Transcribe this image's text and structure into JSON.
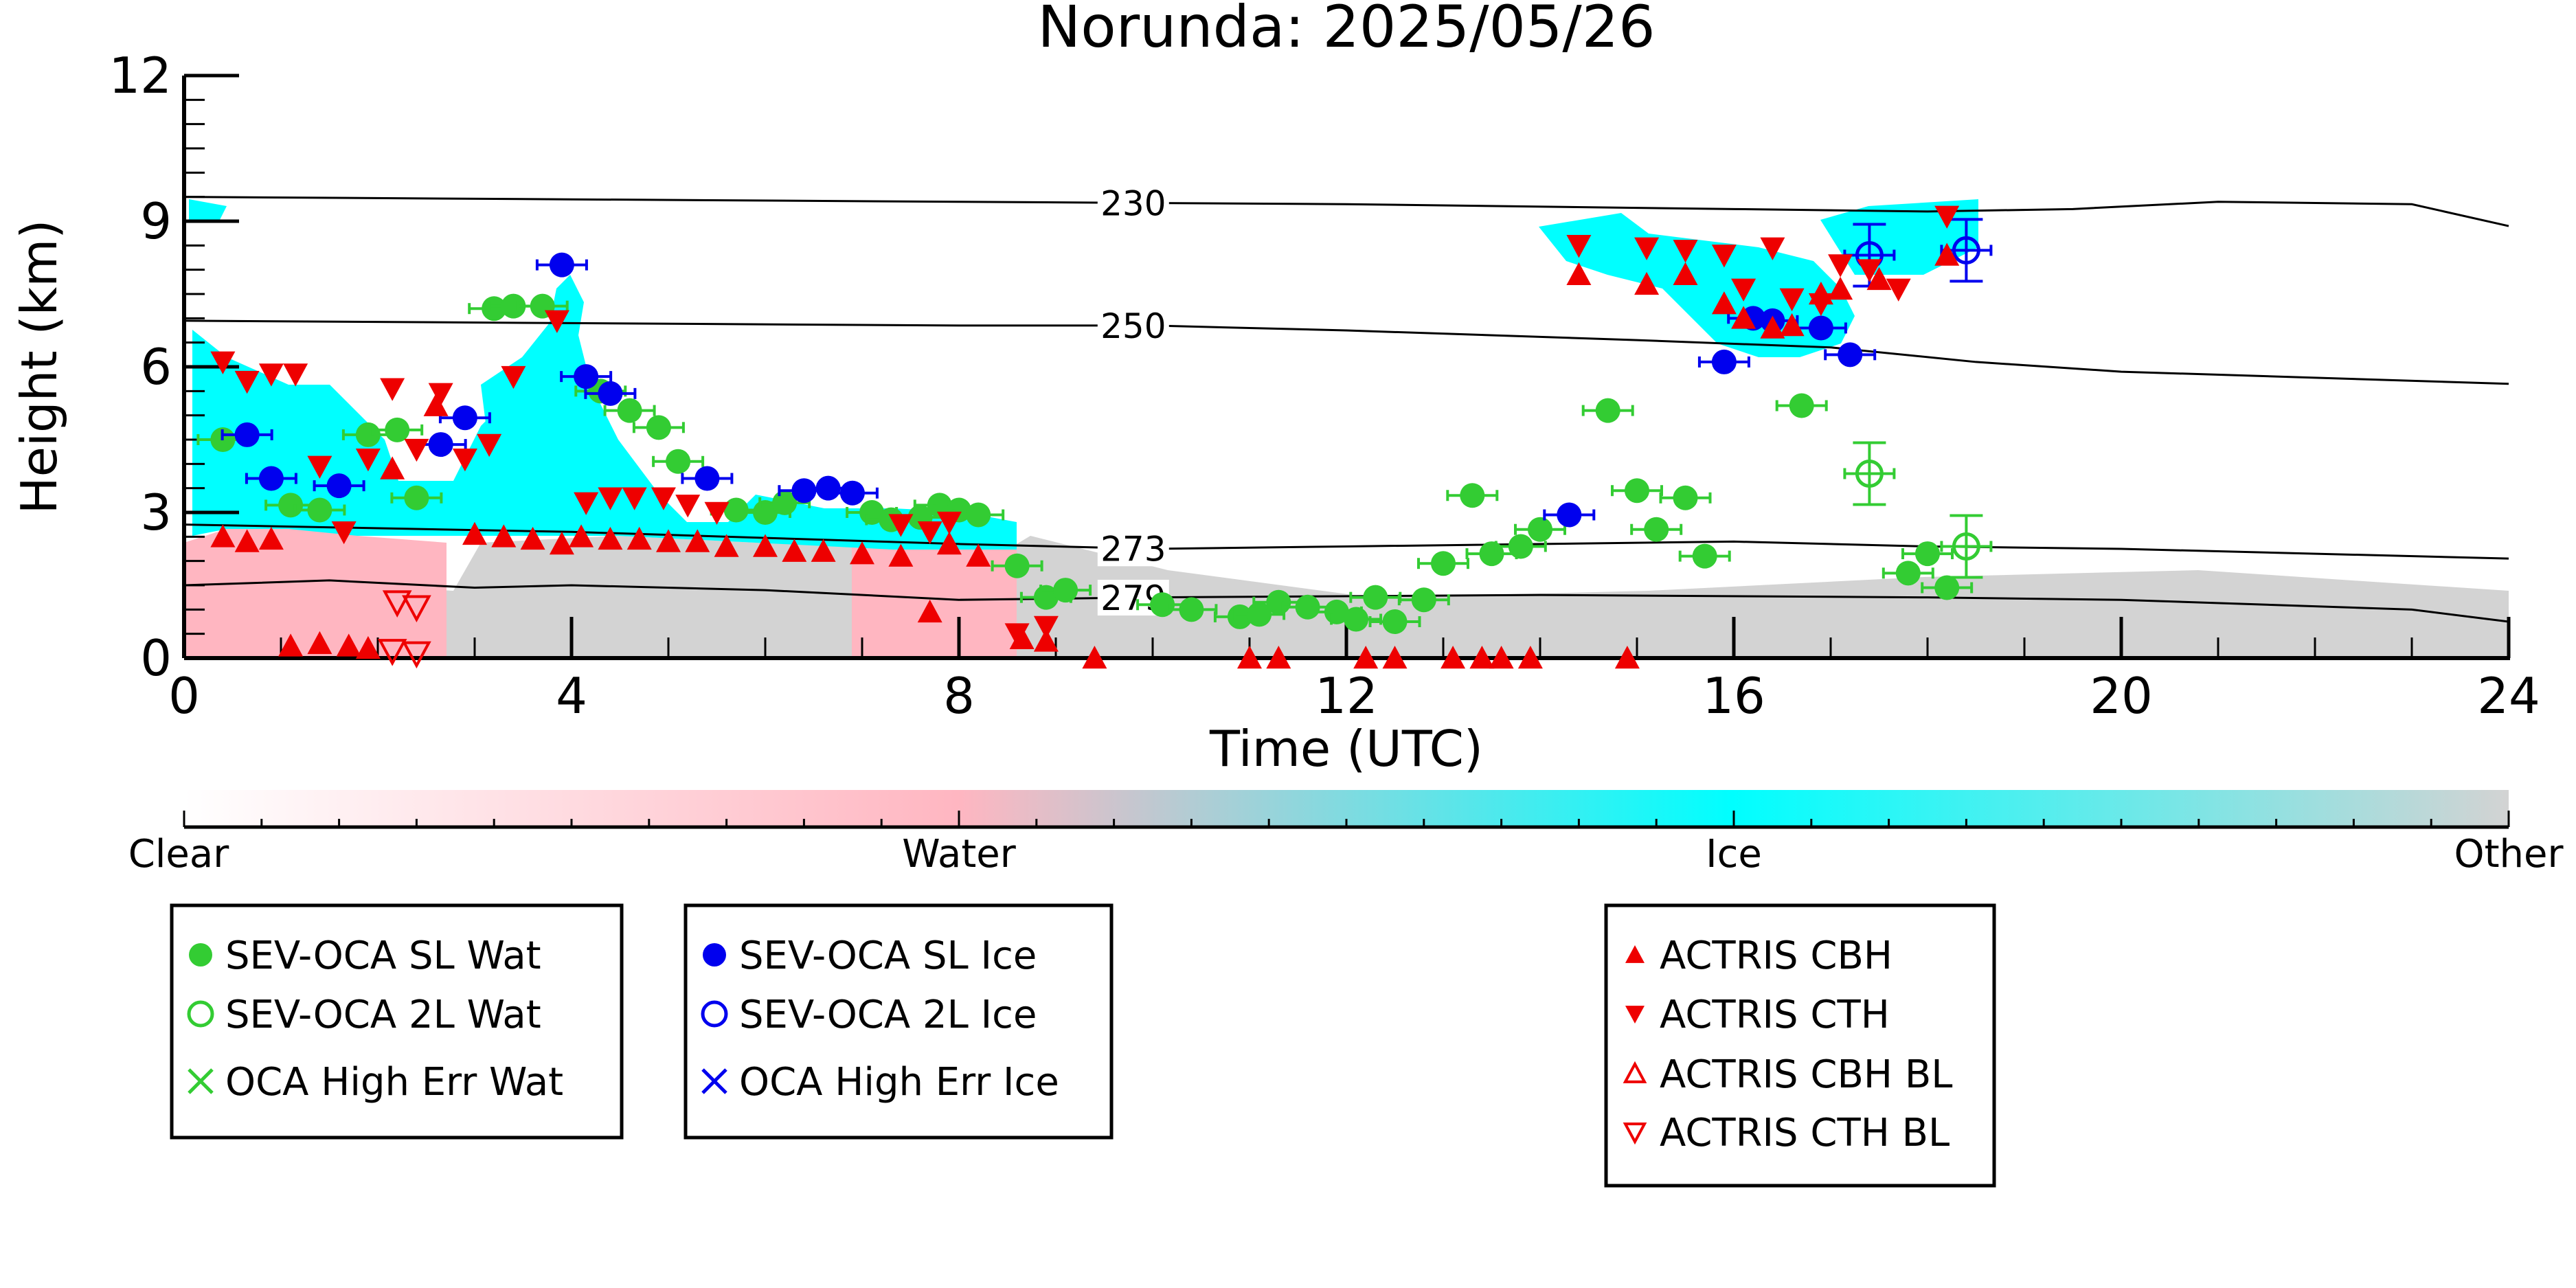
{
  "chart_data": {
    "type": "scatter",
    "title": "Norunda: 2025/05/26",
    "xlabel": "Time (UTC)",
    "ylabel": "Height (km)",
    "xlim": [
      0,
      24
    ],
    "ylim": [
      0,
      12
    ],
    "xticks": [
      0,
      4,
      8,
      12,
      16,
      20,
      24
    ],
    "yticks": [
      0,
      3,
      6,
      9,
      12
    ],
    "grid": false,
    "isotherms": [
      {
        "label": "230",
        "label_x": 9.8,
        "points": [
          [
            0,
            9.5
          ],
          [
            4,
            9.45
          ],
          [
            8,
            9.4
          ],
          [
            12,
            9.35
          ],
          [
            16,
            9.25
          ],
          [
            18,
            9.2
          ],
          [
            19.5,
            9.25
          ],
          [
            21,
            9.4
          ],
          [
            23,
            9.35
          ],
          [
            24,
            8.9
          ]
        ]
      },
      {
        "label": "250",
        "label_x": 9.8,
        "points": [
          [
            0,
            6.95
          ],
          [
            4,
            6.9
          ],
          [
            8,
            6.85
          ],
          [
            10,
            6.85
          ],
          [
            12,
            6.75
          ],
          [
            15,
            6.55
          ],
          [
            17,
            6.4
          ],
          [
            18.5,
            6.1
          ],
          [
            20,
            5.9
          ],
          [
            24,
            5.65
          ]
        ]
      },
      {
        "label": "273",
        "label_x": 9.8,
        "points": [
          [
            0,
            2.75
          ],
          [
            4,
            2.6
          ],
          [
            8,
            2.35
          ],
          [
            10,
            2.25
          ],
          [
            12,
            2.3
          ],
          [
            16,
            2.4
          ],
          [
            18,
            2.3
          ],
          [
            20,
            2.25
          ],
          [
            24,
            2.05
          ]
        ]
      },
      {
        "label": "279",
        "label_x": 9.8,
        "points": [
          [
            0,
            1.5
          ],
          [
            1.5,
            1.6
          ],
          [
            3,
            1.45
          ],
          [
            4,
            1.5
          ],
          [
            6,
            1.4
          ],
          [
            8,
            1.2
          ],
          [
            10,
            1.25
          ],
          [
            14,
            1.3
          ],
          [
            18,
            1.25
          ],
          [
            20,
            1.2
          ],
          [
            23,
            1.0
          ],
          [
            24,
            0.75
          ]
        ]
      }
    ],
    "colorbar": {
      "labels": [
        "Clear",
        "Water",
        "Ice",
        "Other"
      ],
      "colors": [
        "#ffffff",
        "#ffb6c1",
        "#00ffff",
        "#d3d3d3"
      ]
    },
    "series": [
      {
        "name": "SEV-OCA SL Wat",
        "marker": "filled-circle",
        "color": "#33cc33",
        "points": [
          [
            0.4,
            4.5
          ],
          [
            1.1,
            3.15
          ],
          [
            1.4,
            3.05
          ],
          [
            1.9,
            4.6
          ],
          [
            2.2,
            4.7
          ],
          [
            2.4,
            3.3
          ],
          [
            3.2,
            7.2
          ],
          [
            3.4,
            7.25
          ],
          [
            3.7,
            7.25
          ],
          [
            4.3,
            5.5
          ],
          [
            4.6,
            5.1
          ],
          [
            4.9,
            4.75
          ],
          [
            5.1,
            4.05
          ],
          [
            5.7,
            3.05
          ],
          [
            6.0,
            3.0
          ],
          [
            6.2,
            3.2
          ],
          [
            7.1,
            3.0
          ],
          [
            7.3,
            2.85
          ],
          [
            7.6,
            2.9
          ],
          [
            7.8,
            3.15
          ],
          [
            8.0,
            3.05
          ],
          [
            8.2,
            2.95
          ],
          [
            8.6,
            1.9
          ],
          [
            8.9,
            1.25
          ],
          [
            9.1,
            1.4
          ],
          [
            10.1,
            1.1
          ],
          [
            10.4,
            1.0
          ],
          [
            10.9,
            0.85
          ],
          [
            11.1,
            0.9
          ],
          [
            11.3,
            1.15
          ],
          [
            11.6,
            1.05
          ],
          [
            11.9,
            0.95
          ],
          [
            12.1,
            0.8
          ],
          [
            12.3,
            1.25
          ],
          [
            12.5,
            0.75
          ],
          [
            12.8,
            1.2
          ],
          [
            13.0,
            1.95
          ],
          [
            13.3,
            3.35
          ],
          [
            13.5,
            2.15
          ],
          [
            13.8,
            2.3
          ],
          [
            14.0,
            2.65
          ],
          [
            14.7,
            5.1
          ],
          [
            15.0,
            3.45
          ],
          [
            15.2,
            2.65
          ],
          [
            15.5,
            3.3
          ],
          [
            15.7,
            2.1
          ],
          [
            16.7,
            5.2
          ],
          [
            17.8,
            1.75
          ],
          [
            18.0,
            2.15
          ],
          [
            18.2,
            1.45
          ]
        ]
      },
      {
        "name": "SEV-OCA 2L Wat",
        "marker": "open-circle",
        "color": "#33cc33",
        "points": [
          [
            17.4,
            3.8
          ],
          [
            18.4,
            2.3
          ]
        ]
      },
      {
        "name": "OCA High Err Wat",
        "marker": "x",
        "color": "#33cc33",
        "points": []
      },
      {
        "name": "SEV-OCA SL Ice",
        "marker": "filled-circle",
        "color": "#0000ee",
        "points": [
          [
            0.65,
            4.6
          ],
          [
            0.9,
            3.7
          ],
          [
            1.6,
            3.55
          ],
          [
            2.65,
            4.4
          ],
          [
            2.9,
            4.95
          ],
          [
            3.9,
            8.1
          ],
          [
            4.15,
            5.8
          ],
          [
            4.4,
            5.45
          ],
          [
            5.4,
            3.7
          ],
          [
            6.4,
            3.45
          ],
          [
            6.65,
            3.5
          ],
          [
            6.9,
            3.4
          ],
          [
            14.3,
            2.95
          ],
          [
            15.9,
            6.1
          ],
          [
            16.2,
            7.0
          ],
          [
            16.4,
            6.95
          ],
          [
            16.9,
            6.8
          ],
          [
            17.2,
            6.25
          ]
        ]
      },
      {
        "name": "SEV-OCA 2L Ice",
        "marker": "open-circle",
        "color": "#0000ee",
        "points": [
          [
            17.4,
            8.3
          ],
          [
            18.4,
            8.4
          ]
        ]
      },
      {
        "name": "OCA High Err Ice",
        "marker": "x",
        "color": "#0000ee",
        "points": []
      },
      {
        "name": "ACTRIS CBH",
        "marker": "triangle-up",
        "color": "#ee0000",
        "points": [
          [
            0.4,
            2.5
          ],
          [
            0.65,
            2.4
          ],
          [
            0.9,
            2.45
          ],
          [
            1.1,
            0.25
          ],
          [
            1.4,
            0.3
          ],
          [
            1.7,
            0.25
          ],
          [
            1.9,
            0.2
          ],
          [
            2.15,
            3.9
          ],
          [
            2.6,
            5.2
          ],
          [
            3.0,
            2.55
          ],
          [
            3.3,
            2.5
          ],
          [
            3.6,
            2.45
          ],
          [
            3.9,
            2.35
          ],
          [
            4.1,
            2.5
          ],
          [
            4.4,
            2.45
          ],
          [
            4.7,
            2.45
          ],
          [
            5.0,
            2.4
          ],
          [
            5.3,
            2.4
          ],
          [
            5.6,
            2.3
          ],
          [
            6.0,
            2.3
          ],
          [
            6.3,
            2.2
          ],
          [
            6.6,
            2.2
          ],
          [
            7.0,
            2.15
          ],
          [
            7.4,
            2.1
          ],
          [
            7.7,
            0.95
          ],
          [
            7.9,
            2.35
          ],
          [
            8.2,
            2.1
          ],
          [
            8.65,
            0.4
          ],
          [
            8.9,
            0.35
          ],
          [
            9.4,
            0.0
          ],
          [
            11.0,
            0.0
          ],
          [
            11.3,
            0.0
          ],
          [
            12.2,
            0.0
          ],
          [
            12.5,
            0.0
          ],
          [
            13.1,
            0.0
          ],
          [
            13.4,
            0.0
          ],
          [
            13.6,
            0.0
          ],
          [
            13.9,
            0.0
          ],
          [
            14.4,
            7.9
          ],
          [
            14.9,
            0.0
          ],
          [
            15.1,
            7.7
          ],
          [
            15.5,
            7.9
          ],
          [
            15.9,
            7.3
          ],
          [
            16.1,
            7.0
          ],
          [
            16.4,
            6.8
          ],
          [
            16.6,
            6.85
          ],
          [
            16.9,
            7.5
          ],
          [
            17.1,
            7.6
          ],
          [
            17.5,
            7.8
          ],
          [
            18.2,
            8.3
          ]
        ]
      },
      {
        "name": "ACTRIS CTH",
        "marker": "triangle-down",
        "color": "#ee0000",
        "points": [
          [
            0.4,
            6.1
          ],
          [
            0.65,
            5.7
          ],
          [
            0.9,
            5.85
          ],
          [
            1.15,
            5.85
          ],
          [
            1.4,
            3.95
          ],
          [
            1.65,
            2.6
          ],
          [
            1.9,
            4.1
          ],
          [
            2.15,
            5.55
          ],
          [
            2.4,
            4.3
          ],
          [
            2.65,
            5.45
          ],
          [
            2.9,
            4.1
          ],
          [
            3.15,
            4.4
          ],
          [
            3.4,
            5.8
          ],
          [
            3.85,
            6.95
          ],
          [
            4.15,
            3.2
          ],
          [
            4.4,
            3.3
          ],
          [
            4.65,
            3.3
          ],
          [
            4.95,
            3.3
          ],
          [
            5.2,
            3.15
          ],
          [
            5.5,
            3.0
          ],
          [
            7.4,
            2.75
          ],
          [
            7.7,
            2.6
          ],
          [
            7.9,
            2.8
          ],
          [
            8.6,
            0.5
          ],
          [
            8.9,
            0.65
          ],
          [
            14.4,
            8.5
          ],
          [
            15.1,
            8.45
          ],
          [
            15.5,
            8.4
          ],
          [
            15.9,
            8.3
          ],
          [
            16.1,
            7.6
          ],
          [
            16.4,
            8.45
          ],
          [
            16.6,
            7.4
          ],
          [
            16.9,
            7.3
          ],
          [
            17.1,
            8.1
          ],
          [
            17.4,
            8.0
          ],
          [
            17.7,
            7.6
          ],
          [
            18.2,
            9.1
          ]
        ]
      },
      {
        "name": "ACTRIS CBH BL",
        "marker": "open-triangle-up",
        "color": "#ee0000",
        "points": []
      },
      {
        "name": "ACTRIS CTH BL",
        "marker": "open-triangle-down",
        "color": "#ee0000",
        "points": [
          [
            2.2,
            1.15
          ],
          [
            2.4,
            1.05
          ],
          [
            2.15,
            0.15
          ],
          [
            2.4,
            0.1
          ]
        ]
      }
    ]
  },
  "legend_boxes": [
    [
      "SEV-OCA SL Wat",
      "SEV-OCA 2L Wat",
      "OCA High Err Wat"
    ],
    [
      "SEV-OCA SL Ice",
      "SEV-OCA 2L Ice",
      "OCA High Err Ice"
    ],
    [
      "ACTRIS CBH",
      "ACTRIS CTH",
      "ACTRIS CBH BL",
      "ACTRIS CTH BL"
    ]
  ]
}
